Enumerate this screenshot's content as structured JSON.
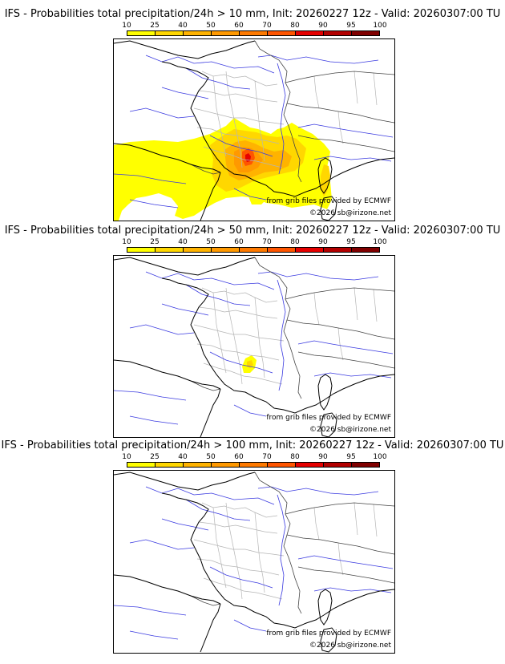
{
  "legend": {
    "ticks": [
      "10",
      "25",
      "40",
      "50",
      "60",
      "70",
      "80",
      "90",
      "95",
      "100"
    ],
    "colors": [
      "#ffff00",
      "#ffd700",
      "#ffb300",
      "#ff9900",
      "#ff7a00",
      "#ff5500",
      "#e60000",
      "#b30000",
      "#800000",
      "#4d0000"
    ]
  },
  "panels": [
    {
      "title": "IFS - Probabilities total precipitation/24h > 10 mm, Init: 20260227 12z - Valid: 20260307:00 TU",
      "credit_source": "from grib files provided by ECMWF",
      "credit_copyright": "©2026 sb@irizone.net",
      "field": "10mm"
    },
    {
      "title": "IFS - Probabilities total precipitation/24h > 50 mm, Init: 20260227 12z - Valid: 20260307:00 TU",
      "credit_source": "from grib files provided by ECMWF",
      "credit_copyright": "©2026 sb@irizone.net",
      "field": "50mm"
    },
    {
      "title": "IFS - Probabilities total precipitation/24h > 100 mm, Init: 20260227 12z - Valid: 20260307:00 TU",
      "credit_source": "from grib files provided by ECMWF",
      "credit_copyright": "©2026 sb@irizone.net",
      "field": "none"
    }
  ]
}
